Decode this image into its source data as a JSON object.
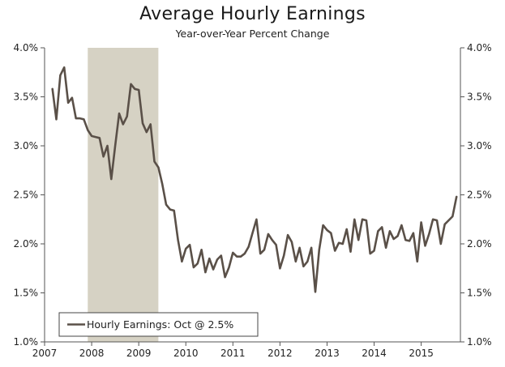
{
  "header": {
    "title": "Average Hourly Earnings",
    "subtitle": "Year-over-Year Percent Change"
  },
  "colors": {
    "line": "#5a5048",
    "recession": "#d6d2c4",
    "axis": "#555555",
    "legend_border": "#444444"
  },
  "legend": {
    "label": "Hourly Earnings: Oct @ 2.5%",
    "placement": "bottom-left"
  },
  "chart_data": {
    "type": "line",
    "title": "Average Hourly Earnings",
    "subtitle": "Year-over-Year Percent Change",
    "xlabel": "",
    "ylabel": "",
    "xlim": [
      2007.0,
      2015.833
    ],
    "ylim": [
      1.0,
      4.0
    ],
    "grid": false,
    "x_tick_labels": [
      "2007",
      "2008",
      "2009",
      "2010",
      "2011",
      "2012",
      "2013",
      "2014",
      "2015"
    ],
    "y_tick_labels_left": [
      "4.0%",
      "3.5%",
      "3.0%",
      "2.5%",
      "2.0%",
      "1.5%",
      "1.0%"
    ],
    "y_tick_labels_right": [
      "4.0%",
      "3.5%",
      "3.0%",
      "2.5%",
      "2.0%",
      "1.5%",
      "1.0%"
    ],
    "y_ticks": [
      4.0,
      3.5,
      3.0,
      2.5,
      2.0,
      1.5,
      1.0
    ],
    "x_ticks": [
      2007,
      2008,
      2009,
      2010,
      2011,
      2012,
      2013,
      2014,
      2015
    ],
    "recession": [
      2007.917,
      2009.417
    ],
    "series": [
      {
        "name": "Hourly Earnings: Oct @ 2.5%",
        "x_start": 2007.167,
        "x_step": 0.08333,
        "values": [
          3.58,
          3.27,
          3.72,
          3.8,
          3.44,
          3.49,
          3.28,
          3.28,
          3.27,
          3.16,
          3.1,
          3.09,
          3.08,
          2.89,
          3.0,
          2.66,
          3.0,
          3.33,
          3.22,
          3.3,
          3.63,
          3.58,
          3.57,
          3.23,
          3.14,
          3.22,
          2.84,
          2.78,
          2.61,
          2.4,
          2.35,
          2.34,
          2.04,
          1.82,
          1.95,
          1.99,
          1.76,
          1.8,
          1.94,
          1.71,
          1.85,
          1.74,
          1.84,
          1.88,
          1.66,
          1.76,
          1.91,
          1.87,
          1.87,
          1.9,
          1.97,
          2.11,
          2.25,
          1.9,
          1.94,
          2.1,
          2.04,
          1.99,
          1.75,
          1.88,
          2.09,
          2.02,
          1.82,
          1.96,
          1.77,
          1.82,
          1.96,
          1.51,
          1.94,
          2.19,
          2.14,
          2.11,
          1.93,
          2.01,
          2.0,
          2.15,
          1.92,
          2.25,
          2.04,
          2.25,
          2.24,
          1.9,
          1.93,
          2.13,
          2.17,
          1.96,
          2.13,
          2.05,
          2.08,
          2.19,
          2.04,
          2.03,
          2.11,
          1.82,
          2.22,
          1.98,
          2.1,
          2.25,
          2.24,
          2.0,
          2.2,
          2.24,
          2.28,
          2.48
        ]
      }
    ]
  }
}
